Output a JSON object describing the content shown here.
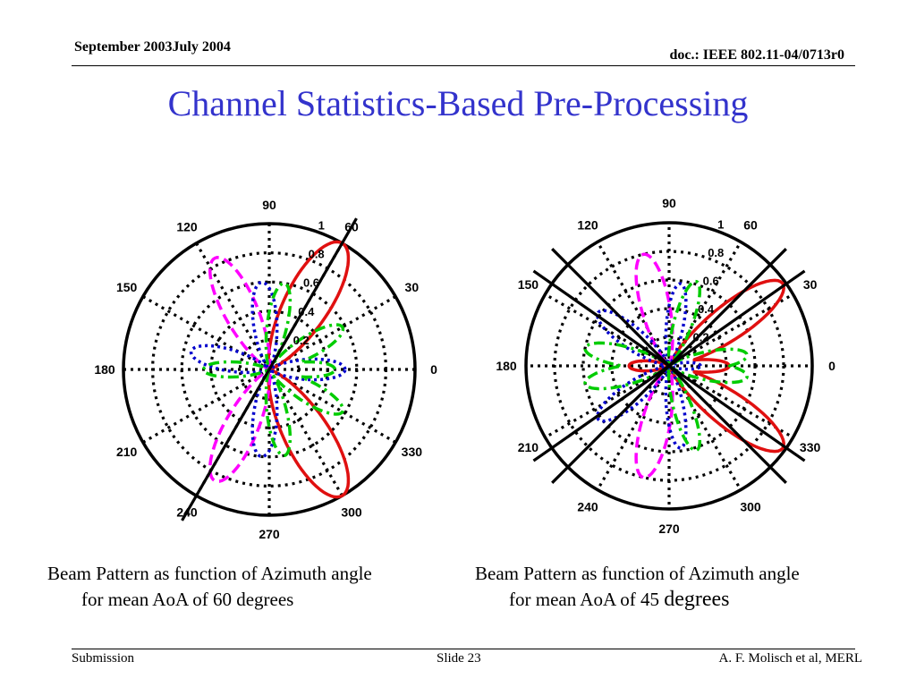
{
  "header": {
    "date": "September 2003July 2004",
    "doc_id": "doc.: IEEE 802.11-04/0713r0"
  },
  "title": "Channel Statistics-Based Pre-Processing",
  "captions": [
    {
      "line1": "Beam Pattern as function of Azimuth angle",
      "line2": "for mean AoA of 60 degrees"
    },
    {
      "line1": "Beam Pattern as function of Azimuth angle",
      "line2_a": "for mean AoA of 45 ",
      "line2_b": "degrees"
    }
  ],
  "footer": {
    "left": "Submission",
    "center": "Slide 23",
    "right": "A. F. Molisch et al, MERL"
  },
  "chart_data": [
    {
      "type": "polar",
      "title": "",
      "rmax": 1,
      "radial_ticks": [
        "0.2",
        "0.4",
        "0.6",
        "0.8",
        "1"
      ],
      "angle_ticks": [
        "0",
        "30",
        "60",
        "90",
        "120",
        "150",
        "180",
        "210",
        "240",
        "270",
        "300",
        "330"
      ],
      "reference_lines_deg": [
        60
      ],
      "series": [
        {
          "color": "#e01010",
          "style": "solid",
          "lobes": [
            {
              "center": 60,
              "peak": 1.0,
              "width": 15
            },
            {
              "center": 300,
              "peak": 1.0,
              "width": 15
            }
          ]
        },
        {
          "color": "#ff00ff",
          "style": "dashed",
          "lobes": [
            {
              "center": 116,
              "peak": 0.85,
              "width": 13
            },
            {
              "center": 244,
              "peak": 0.85,
              "width": 13
            }
          ]
        },
        {
          "color": "#0000cc",
          "style": "dotted",
          "lobes": [
            {
              "center": 0,
              "peak": 0.52,
              "width": 13
            },
            {
              "center": 95,
              "peak": 0.6,
              "width": 13
            },
            {
              "center": 167,
              "peak": 0.55,
              "width": 13
            },
            {
              "center": 265,
              "peak": 0.6,
              "width": 13
            }
          ]
        },
        {
          "color": "#00cc00",
          "style": "dashdot",
          "lobes": [
            {
              "center": 0,
              "peak": 0.45,
              "width": 11
            },
            {
              "center": 30,
              "peak": 0.58,
              "width": 12
            },
            {
              "center": 80,
              "peak": 0.6,
              "width": 11
            },
            {
              "center": 180,
              "peak": 0.45,
              "width": 11
            },
            {
              "center": 280,
              "peak": 0.6,
              "width": 11
            },
            {
              "center": 330,
              "peak": 0.58,
              "width": 12
            }
          ]
        }
      ]
    },
    {
      "type": "polar",
      "title": "",
      "rmax": 1,
      "radial_ticks": [
        "0.2",
        "0.4",
        "0.6",
        "0.8",
        "1"
      ],
      "angle_ticks": [
        "0",
        "30",
        "60",
        "90",
        "120",
        "150",
        "180",
        "210",
        "240",
        "270",
        "300",
        "330"
      ],
      "reference_lines_deg": [
        45,
        35,
        325,
        315
      ],
      "series": [
        {
          "color": "#e01010",
          "style": "solid",
          "lobes": [
            {
              "center": 36,
              "peak": 0.98,
              "width": 12
            },
            {
              "center": 324,
              "peak": 0.98,
              "width": 12
            },
            {
              "center": 0,
              "peak": 0.42,
              "width": 10
            },
            {
              "center": 180,
              "peak": 0.28,
              "width": 12
            }
          ]
        },
        {
          "color": "#ff00ff",
          "style": "dashed",
          "lobes": [
            {
              "center": 103,
              "peak": 0.8,
              "width": 12
            },
            {
              "center": 257,
              "peak": 0.8,
              "width": 12
            }
          ]
        },
        {
          "color": "#0000cc",
          "style": "dotted",
          "lobes": [
            {
              "center": 0,
              "peak": 0.22,
              "width": 10
            },
            {
              "center": 82,
              "peak": 0.58,
              "width": 10
            },
            {
              "center": 143,
              "peak": 0.62,
              "width": 12
            },
            {
              "center": 217,
              "peak": 0.62,
              "width": 12
            },
            {
              "center": 278,
              "peak": 0.58,
              "width": 10
            }
          ]
        },
        {
          "color": "#00cc00",
          "style": "dashdot",
          "lobes": [
            {
              "center": 8,
              "peak": 0.55,
              "width": 11
            },
            {
              "center": 72,
              "peak": 0.62,
              "width": 10
            },
            {
              "center": 168,
              "peak": 0.6,
              "width": 11
            },
            {
              "center": 192,
              "peak": 0.6,
              "width": 11
            },
            {
              "center": 288,
              "peak": 0.62,
              "width": 10
            },
            {
              "center": 352,
              "peak": 0.55,
              "width": 11
            }
          ]
        }
      ]
    }
  ]
}
